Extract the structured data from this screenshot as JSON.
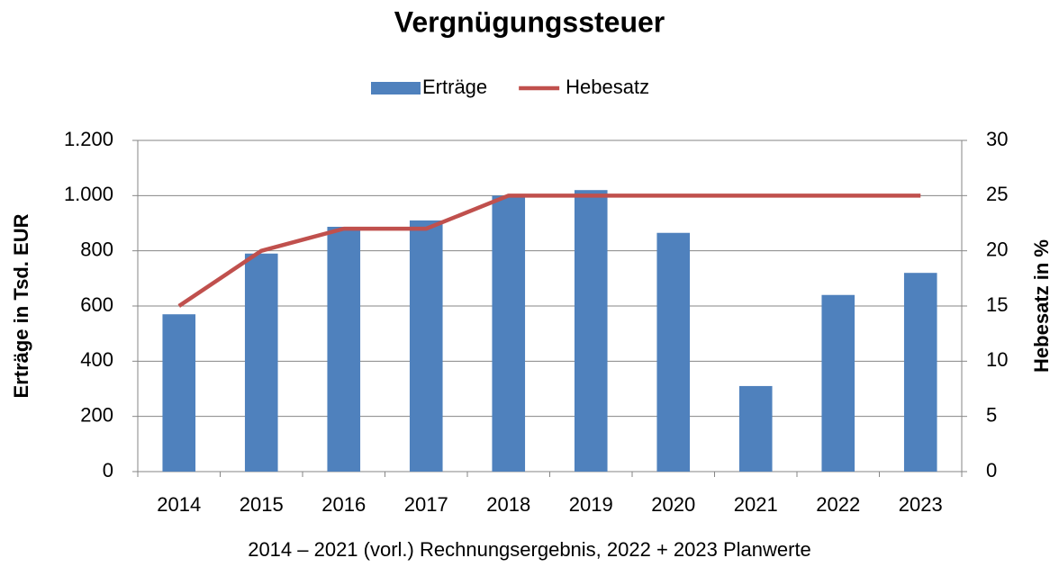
{
  "chart_data": {
    "type": "bar",
    "title": "Vergnügungssteuer",
    "categories": [
      "2014",
      "2015",
      "2016",
      "2017",
      "2018",
      "2019",
      "2020",
      "2021",
      "2022",
      "2023"
    ],
    "series": [
      {
        "name": "Erträge",
        "type": "bar",
        "color": "#4f81bd",
        "values": [
          570,
          790,
          887,
          910,
          1000,
          1020,
          865,
          310,
          640,
          720
        ]
      },
      {
        "name": "Hebesatz",
        "type": "line",
        "axis": "y2",
        "color": "#c0504d",
        "values": [
          15,
          20,
          22,
          22,
          25,
          25,
          25,
          25,
          25,
          25
        ]
      }
    ],
    "ylabel": "Erträge in Tsd. EUR",
    "y2label": "Hebesatz in %",
    "ylim": [
      0,
      1200
    ],
    "yticks": [
      0,
      200,
      400,
      600,
      800,
      {
        "value": 1000,
        "label": "1.000"
      },
      {
        "value": 1200,
        "label": "1.200"
      }
    ],
    "y2lim": [
      0,
      30
    ],
    "y2ticks": [
      0,
      5,
      10,
      15,
      20,
      25,
      30
    ],
    "grid": true,
    "legend": "top",
    "annotation": "2014 – 2021 (vorl.) Rechnungsergebnis, 2022 + 2023 Planwerte"
  }
}
